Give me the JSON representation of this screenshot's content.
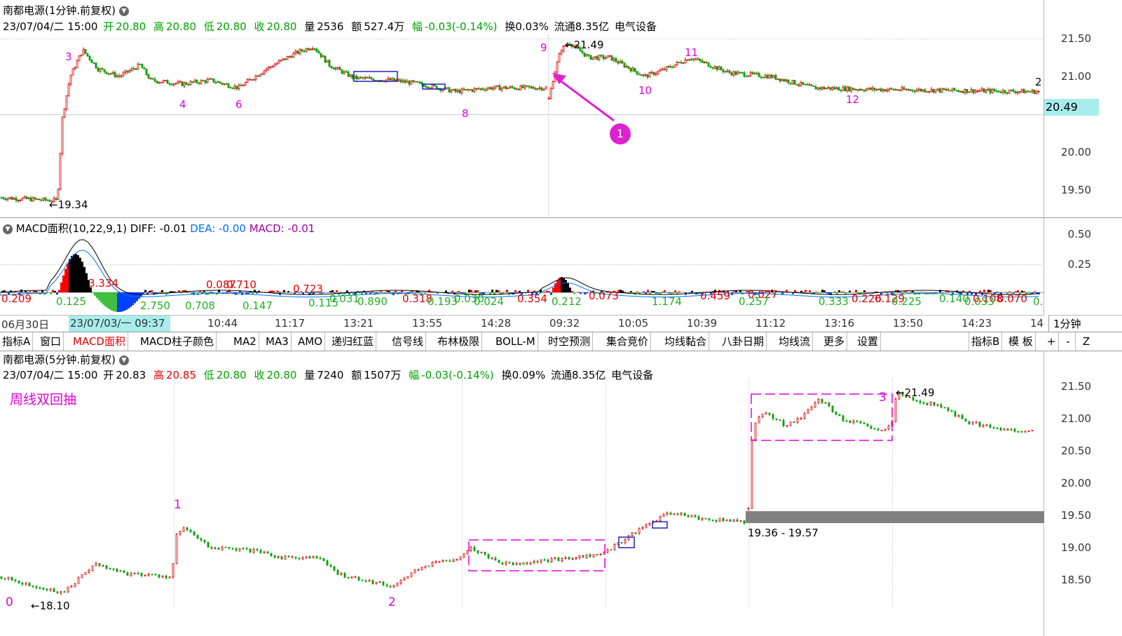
{
  "top": {
    "stock_title": "南都电源(1分钟.前复权)",
    "date": "23/07/04/二 15:00",
    "open_label": "开",
    "open": "20.80",
    "high_label": "高",
    "high": "20.80",
    "low_label": "低",
    "low": "20.80",
    "close_label": "收",
    "close": "20.80",
    "vol_label": "量",
    "vol": "2536",
    "amt_label": "额",
    "amt": "527.4万",
    "chg_label": "幅",
    "chg": "-0.03(-0.14%)",
    "turnover": "换0.03%",
    "float": "流通8.35亿",
    "industry": "电气设备",
    "yticks": [
      "21.50",
      "21.00",
      "20.50",
      "20.00",
      "19.50"
    ],
    "price_tag": "20.49",
    "low_marker": "19.34",
    "high_marker": "21.49",
    "edge_label": "2",
    "wave_labels": [
      "3",
      "4",
      "6",
      "8",
      "9",
      "10",
      "11",
      "12"
    ],
    "circle_label": "1"
  },
  "macd": {
    "title": "MACD面积(10,22,9,1)",
    "diff": "DIFF: -0.01",
    "dea": "DEA: -0.00",
    "macd": "MACD: -0.01",
    "yticks": [
      "0.50",
      "0.25"
    ],
    "area_labels_red": [
      "0.209",
      "3.334",
      "0.087",
      "0.710",
      "0.723",
      "0.318",
      "0.354",
      "0.073",
      "0.459",
      "0.027",
      "0.226",
      "0.129",
      "0.108",
      "0.070"
    ],
    "area_labels_green": [
      "0.125",
      "2.750",
      "0.708",
      "0.147",
      "0.115",
      "0.031",
      "0.890",
      "0.193",
      "0.030",
      "0.024",
      "0.212",
      "1.174",
      "0.257",
      "0.333",
      "0.225",
      "0.140",
      "0.053"
    ],
    "edge_label": "0."
  },
  "timeaxis": {
    "labels": [
      "06月30日",
      "10:44",
      "11:17",
      "13:21",
      "13:55",
      "14:28",
      "09:32",
      "10:05",
      "10:39",
      "11:12",
      "13:16",
      "13:50",
      "14:23",
      "14"
    ],
    "cursor": "23/07/03/一 09:37",
    "period": "1分钟"
  },
  "toolbar": {
    "items": [
      "指标A",
      "窗口",
      "MACD面积",
      "MACD柱子颜色",
      "MA2",
      "MA3",
      "AMO",
      "递归红蓝",
      "信号线",
      "布林极限",
      "BOLL-M",
      "时空预测",
      "集合竞价",
      "均线黏合",
      "八卦日期",
      "均线流",
      "更多",
      "设置"
    ],
    "right_items": [
      "指标B",
      "模 板",
      "+",
      "-",
      "Z"
    ]
  },
  "bottom": {
    "stock_title": "南都电源(5分钟.前复权)",
    "date": "23/07/04/二 15:00",
    "open_label": "开",
    "open": "20.83",
    "high_label": "高",
    "high": "20.85",
    "low_label": "低",
    "low": "20.80",
    "close_label": "收",
    "close": "20.80",
    "vol_label": "量",
    "vol": "7240",
    "amt_label": "额",
    "amt": "1507万",
    "chg_label": "幅",
    "chg": "-0.03(-0.14%)",
    "turnover": "换0.09%",
    "float": "流通8.35亿",
    "industry": "电气设备",
    "annotation": "周线双回抽",
    "yticks": [
      "21.50",
      "21.00",
      "20.50",
      "20.00",
      "19.50",
      "19.00",
      "18.50"
    ],
    "low_marker": "18.10",
    "high_marker": "21.49",
    "range_label": "19.36 - 19.57",
    "wave_labels": [
      "0",
      "1",
      "2",
      "3"
    ]
  },
  "colors": {
    "up": "#e00000",
    "down": "#00a000",
    "magenta": "#e000e0",
    "box": "#2020c0",
    "macd_red": "#ff0000",
    "macd_green": "#40c040",
    "macd_blue": "#0040ff"
  }
}
